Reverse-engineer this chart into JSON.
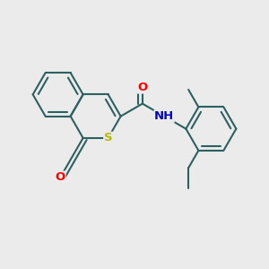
{
  "bg_color": "#ebebeb",
  "bond_color": "#2d6060",
  "lw": 1.5,
  "dbo": 0.055,
  "atom_colors": {
    "O": "#ff0000",
    "S": "#b8b800",
    "N": "#0000cc"
  },
  "fs": 9.5
}
